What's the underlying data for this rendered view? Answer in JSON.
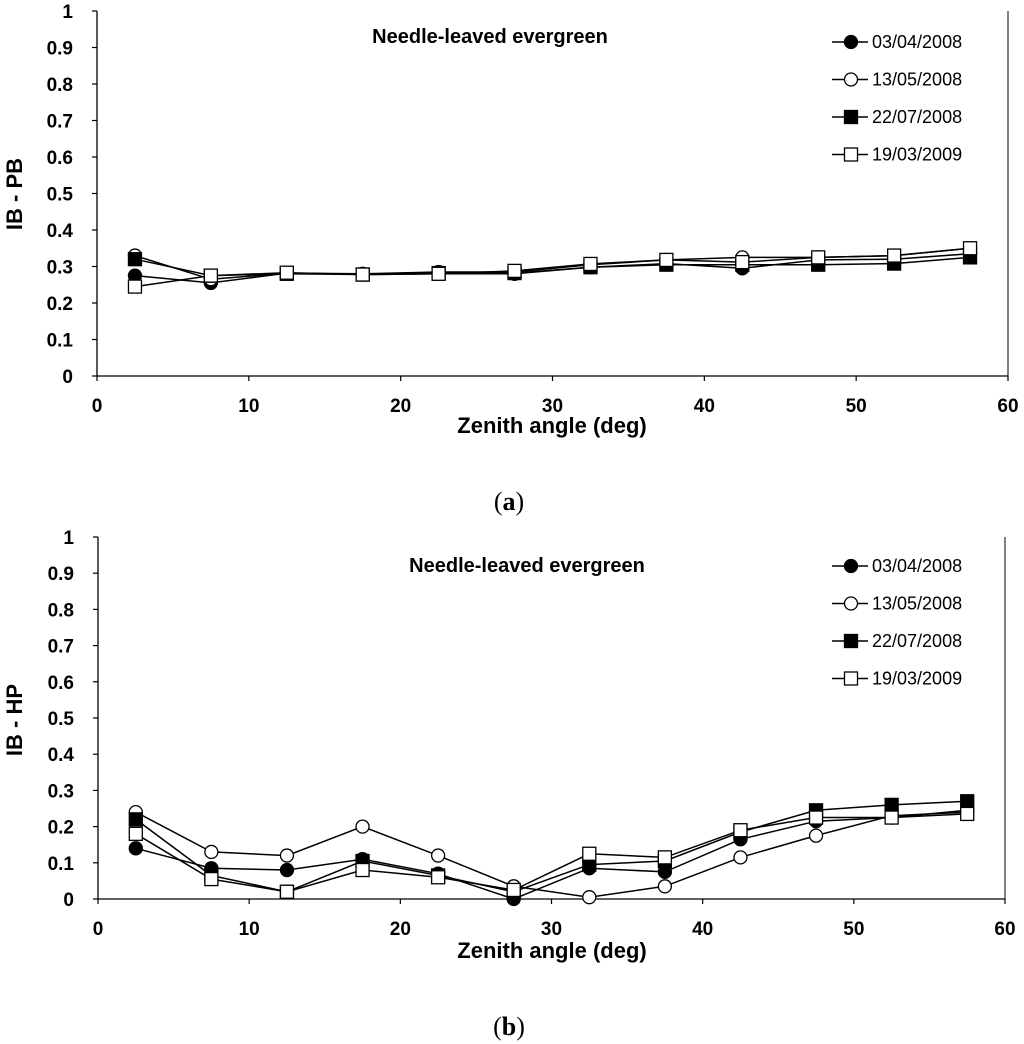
{
  "chart_data": [
    {
      "type": "line",
      "panel": "a",
      "caption_letter": "a",
      "caption_open": "(",
      "caption_close": ")",
      "title": "Needle-leaved evergreen",
      "xlabel": "Zenith angle (deg)",
      "ylabel": "IB - PB",
      "xlim": [
        0,
        60
      ],
      "ylim": [
        0,
        1
      ],
      "xticks": [
        "0",
        "10",
        "20",
        "30",
        "40",
        "50",
        "60"
      ],
      "yticks": [
        "0",
        "0.1",
        "0.2",
        "0.3",
        "0.4",
        "0.5",
        "0.6",
        "0.7",
        "0.8",
        "0.9",
        "1"
      ],
      "legend_position": "top-right",
      "x": [
        2.5,
        7.5,
        12.5,
        17.5,
        22.5,
        27.5,
        32.5,
        37.5,
        42.5,
        47.5,
        52.5,
        57.5
      ],
      "series": [
        {
          "name": "03/04/2008",
          "marker": "filled-circle",
          "values": [
            0.275,
            0.255,
            0.282,
            0.278,
            0.28,
            0.28,
            0.298,
            0.308,
            0.295,
            0.318,
            0.32,
            0.335
          ]
        },
        {
          "name": "13/05/2008",
          "marker": "open-circle",
          "values": [
            0.33,
            0.265,
            0.282,
            0.28,
            0.285,
            0.285,
            0.305,
            0.318,
            0.325,
            0.325,
            0.33,
            0.35
          ]
        },
        {
          "name": "22/07/2008",
          "marker": "filled-square",
          "values": [
            0.32,
            0.275,
            0.28,
            0.278,
            0.282,
            0.282,
            0.298,
            0.305,
            0.305,
            0.305,
            0.308,
            0.325
          ]
        },
        {
          "name": "19/03/2009",
          "marker": "open-square",
          "values": [
            0.245,
            0.275,
            0.283,
            0.278,
            0.28,
            0.288,
            0.307,
            0.318,
            0.312,
            0.325,
            0.33,
            0.35
          ]
        }
      ]
    },
    {
      "type": "line",
      "panel": "b",
      "caption_letter": "b",
      "caption_open": "(",
      "caption_close": ")",
      "title": "Needle-leaved evergreen",
      "xlabel": "Zenith angle (deg)",
      "ylabel": "IB - HP",
      "xlim": [
        0,
        60
      ],
      "ylim": [
        0,
        1
      ],
      "xticks": [
        "0",
        "10",
        "20",
        "30",
        "40",
        "50",
        "60"
      ],
      "yticks": [
        "0",
        "0.1",
        "0.2",
        "0.3",
        "0.4",
        "0.5",
        "0.6",
        "0.7",
        "0.8",
        "0.9",
        "1"
      ],
      "legend_position": "top-right",
      "x": [
        2.5,
        7.5,
        12.5,
        17.5,
        22.5,
        27.5,
        32.5,
        37.5,
        42.5,
        47.5,
        52.5,
        57.5
      ],
      "series": [
        {
          "name": "03/04/2008",
          "marker": "filled-circle",
          "values": [
            0.14,
            0.085,
            0.08,
            0.11,
            0.07,
            0.0,
            0.085,
            0.075,
            0.165,
            0.215,
            0.225,
            0.245
          ]
        },
        {
          "name": "13/05/2008",
          "marker": "open-circle",
          "values": [
            0.24,
            0.13,
            0.12,
            0.2,
            0.12,
            0.035,
            0.005,
            0.035,
            0.115,
            0.175,
            0.23,
            0.24
          ]
        },
        {
          "name": "22/07/2008",
          "marker": "filled-square",
          "values": [
            0.22,
            0.065,
            0.02,
            0.105,
            0.065,
            0.02,
            0.095,
            0.105,
            0.185,
            0.245,
            0.26,
            0.27
          ]
        },
        {
          "name": "19/03/2009",
          "marker": "open-square",
          "values": [
            0.18,
            0.055,
            0.02,
            0.08,
            0.06,
            0.025,
            0.125,
            0.115,
            0.19,
            0.225,
            0.225,
            0.235
          ]
        }
      ]
    }
  ]
}
